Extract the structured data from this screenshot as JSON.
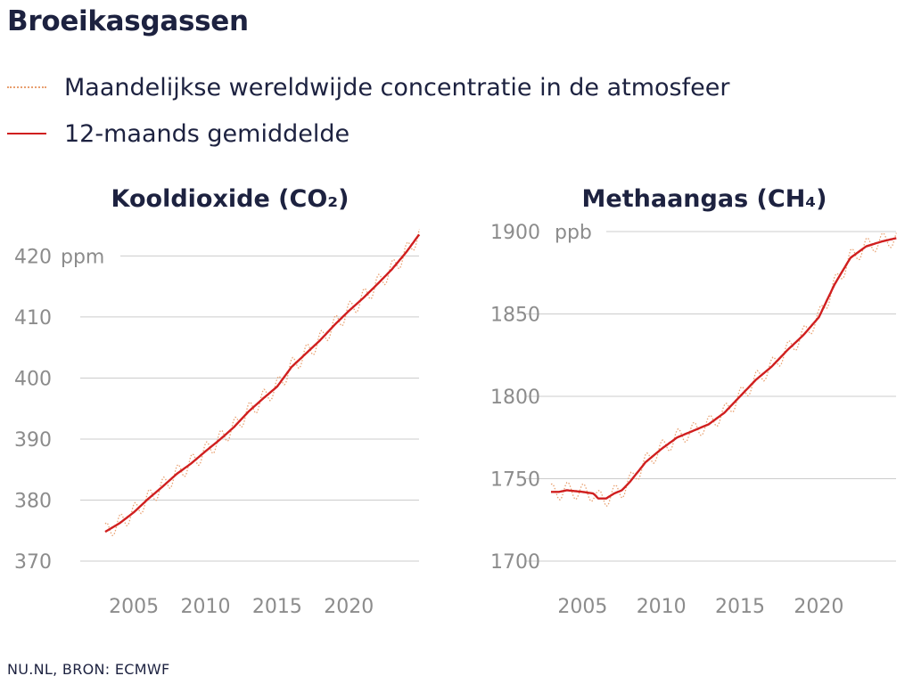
{
  "title": "Broeikasgassen",
  "legend": [
    {
      "label": "Maandelijkse wereldwijde concentratie in de atmosfeer",
      "style": "dotted",
      "color": "#e8a070"
    },
    {
      "label": "12-maands gemiddelde",
      "style": "solid",
      "color": "#d01f1f"
    }
  ],
  "source": "NU.NL, BRON: ECMWF",
  "colors": {
    "monthly": "#e8a070",
    "average": "#d01f1f",
    "grid": "#cccccc",
    "tick": "#8c8c8c",
    "text": "#1d2240"
  },
  "chart_data": [
    {
      "type": "line",
      "title": "Kooldioxide (CO₂)",
      "unit": "ppm",
      "xlim": [
        2003,
        2024.9
      ],
      "ylim": [
        370,
        424
      ],
      "xticks": [
        2005,
        2010,
        2015,
        2020
      ],
      "yticks": [
        370,
        380,
        390,
        400,
        410,
        420
      ],
      "grid": true,
      "series": [
        {
          "name": "12-maands gemiddelde",
          "x": [
            2003,
            2004,
            2005,
            2006,
            2007,
            2008,
            2009,
            2010,
            2011,
            2012,
            2013,
            2014,
            2015,
            2016,
            2017,
            2018,
            2019,
            2020,
            2021,
            2022,
            2023,
            2024,
            2024.9
          ],
          "y": [
            374.8,
            376.2,
            378.0,
            380.2,
            382.2,
            384.3,
            386.0,
            388.0,
            389.9,
            392.0,
            394.5,
            396.6,
            398.6,
            401.8,
            404.0,
            406.2,
            408.7,
            411.0,
            413.1,
            415.4,
            417.8,
            420.6,
            423.5
          ]
        },
        {
          "name": "Maandelijkse wereldwijde concentratie in de atmosfeer",
          "seasonal_amplitude": 1.4,
          "x": [
            2003,
            2004,
            2005,
            2006,
            2007,
            2008,
            2009,
            2010,
            2011,
            2012,
            2013,
            2014,
            2015,
            2016,
            2017,
            2018,
            2019,
            2020,
            2021,
            2022,
            2023,
            2024,
            2024.9
          ],
          "y": [
            374.8,
            376.2,
            378.0,
            380.2,
            382.2,
            384.3,
            386.0,
            388.0,
            389.9,
            392.0,
            394.5,
            396.6,
            398.6,
            401.8,
            404.0,
            406.2,
            408.7,
            411.0,
            413.1,
            415.4,
            417.8,
            420.6,
            423.5
          ]
        }
      ]
    },
    {
      "type": "line",
      "title": "Methaangas (CH₄)",
      "unit": "ppb",
      "xlim": [
        2003,
        2024.9
      ],
      "ylim": [
        1700,
        1900
      ],
      "xticks": [
        2005,
        2010,
        2015,
        2020
      ],
      "yticks": [
        1700,
        1750,
        1800,
        1850,
        1900
      ],
      "grid": true,
      "series": [
        {
          "name": "12-maands gemiddelde",
          "x": [
            2003,
            2003.5,
            2004,
            2005,
            2005.7,
            2006,
            2006.5,
            2007,
            2007.5,
            2008,
            2009,
            2010,
            2011,
            2012,
            2013,
            2014,
            2015,
            2016,
            2017,
            2018,
            2019,
            2020,
            2021,
            2022,
            2023,
            2024,
            2024.9
          ],
          "y": [
            1742,
            1742,
            1743,
            1742,
            1741,
            1738,
            1738,
            1741,
            1743,
            1748,
            1760,
            1768,
            1775,
            1779,
            1783,
            1790,
            1800,
            1810,
            1818,
            1828,
            1837,
            1848,
            1868,
            1884,
            1891,
            1894,
            1896
          ]
        },
        {
          "name": "Maandelijkse wereldwijde concentratie in de atmosfeer",
          "seasonal_amplitude": 5,
          "x": [
            2003,
            2003.5,
            2004,
            2005,
            2005.7,
            2006,
            2006.5,
            2007,
            2007.5,
            2008,
            2009,
            2010,
            2011,
            2012,
            2013,
            2014,
            2015,
            2016,
            2017,
            2018,
            2019,
            2020,
            2021,
            2022,
            2023,
            2024,
            2024.9
          ],
          "y": [
            1742,
            1742,
            1743,
            1742,
            1741,
            1738,
            1738,
            1741,
            1743,
            1748,
            1760,
            1768,
            1775,
            1779,
            1783,
            1790,
            1800,
            1810,
            1818,
            1828,
            1837,
            1848,
            1868,
            1884,
            1891,
            1894,
            1896
          ]
        }
      ]
    }
  ]
}
